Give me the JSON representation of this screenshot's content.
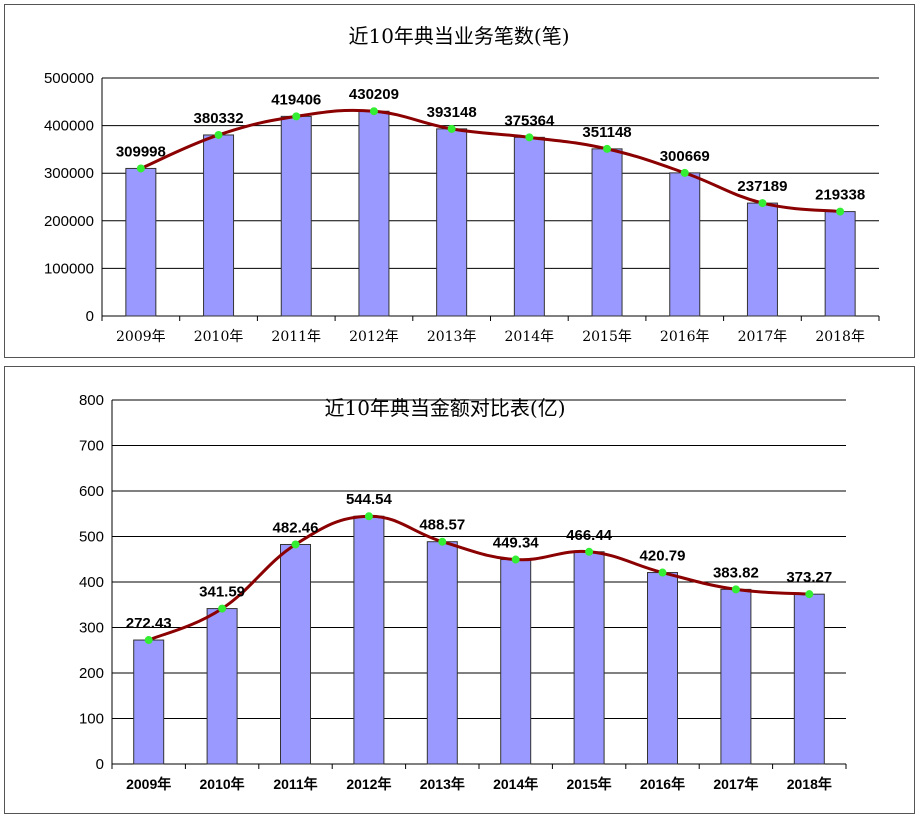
{
  "chart_data": [
    {
      "type": "bar",
      "title": "近10年典当业务笔数(笔)",
      "categories": [
        "2009年",
        "2010年",
        "2011年",
        "2012年",
        "2013年",
        "2014年",
        "2015年",
        "2016年",
        "2017年",
        "2018年"
      ],
      "values": [
        309998,
        380332,
        419406,
        430209,
        393148,
        375364,
        351148,
        300669,
        237189,
        219338
      ],
      "data_labels": [
        "309998",
        "380332",
        "419406",
        "430209",
        "393148",
        "375364",
        "351148",
        "300669",
        "237189",
        "219338"
      ],
      "yticks": [
        "0",
        "100000",
        "200000",
        "300000",
        "400000",
        "500000"
      ],
      "ylim": [
        0,
        500000
      ],
      "overlay": "smoothed-line",
      "grid": true,
      "colors": {
        "bar": "#9999ff",
        "line": "#8b0000",
        "marker": "#33ee33"
      }
    },
    {
      "type": "bar",
      "title": "近10年典当金额对比表(亿)",
      "categories": [
        "2009年",
        "2010年",
        "2011年",
        "2012年",
        "2013年",
        "2014年",
        "2015年",
        "2016年",
        "2017年",
        "2018年"
      ],
      "values": [
        272.43,
        341.59,
        482.46,
        544.54,
        488.57,
        449.34,
        466.44,
        420.79,
        383.82,
        373.27
      ],
      "data_labels": [
        "272.43",
        "341.59",
        "482.46",
        "544.54",
        "488.57",
        "449.34",
        "466.44",
        "420.79",
        "383.82",
        "373.27"
      ],
      "yticks": [
        "0",
        "100",
        "200",
        "300",
        "400",
        "500",
        "600",
        "700",
        "800"
      ],
      "ylim": [
        0,
        800
      ],
      "overlay": "smoothed-line",
      "grid": true,
      "colors": {
        "bar": "#9999ff",
        "line": "#8b0000",
        "marker": "#33ee33"
      }
    }
  ]
}
